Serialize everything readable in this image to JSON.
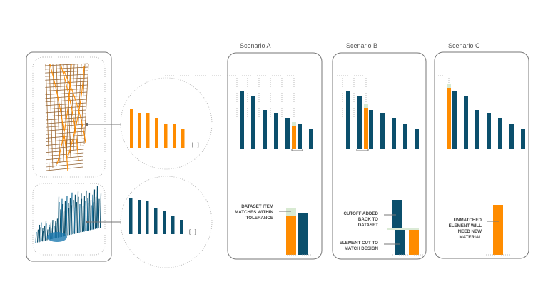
{
  "colors": {
    "dataset": "#0b4f6c",
    "design": "#ff8c00",
    "tolerance": "#d8ead2",
    "frame": "#777777"
  },
  "left_panel": {
    "design_image": "orange-timber-lattice-wall",
    "dataset_image": "blue-timber-stock-field",
    "ellipsis_design": "[...]",
    "ellipsis_dataset": "[...]"
  },
  "scenarios": [
    {
      "title": "Scenario A",
      "labels": [
        "DATASET ITEM",
        "MATCHES WITHIN",
        "TOLERANCE"
      ]
    },
    {
      "title": "Scenario B",
      "labels_top": [
        "CUTOFF ADDED",
        "BACK TO",
        "DATASET"
      ],
      "labels_bottom": [
        "ELEMENT CUT TO",
        "MATCH DESIGN"
      ]
    },
    {
      "title": "Scenario C",
      "labels": [
        "UNMATCHED",
        "ELEMENT WILL",
        "NEED NEW",
        "MATERIAL"
      ]
    }
  ]
}
